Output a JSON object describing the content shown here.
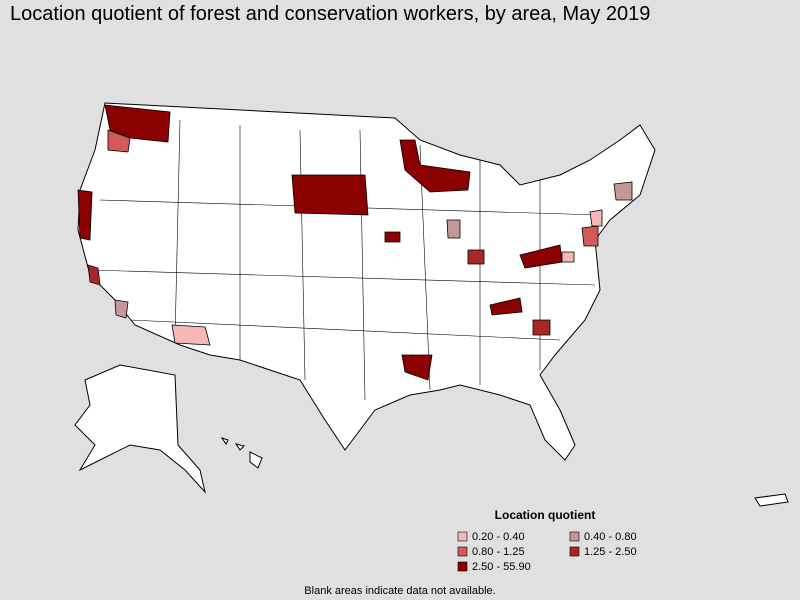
{
  "title": "Location quotient of forest and conservation workers, by area, May 2019",
  "legend": {
    "title": "Location quotient",
    "items": [
      {
        "label": "0.20 - 0.40",
        "color": "#f7b7b7"
      },
      {
        "label": "0.40 - 0.80",
        "color": "#c49898"
      },
      {
        "label": "0.80 - 1.25",
        "color": "#d45a5a"
      },
      {
        "label": "1.25 - 2.50",
        "color": "#a82828"
      },
      {
        "label": "2.50 - 55.90",
        "color": "#8b0000"
      }
    ]
  },
  "note": "Blank areas indicate data not available."
}
